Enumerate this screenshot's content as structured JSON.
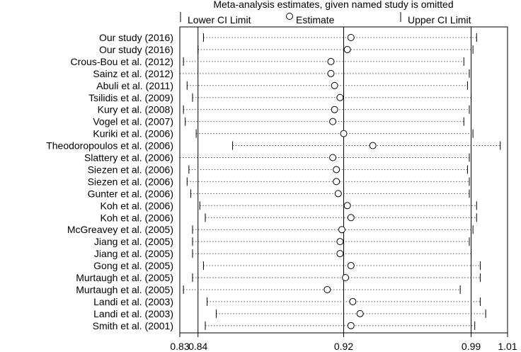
{
  "chart_data": {
    "type": "forest",
    "title": "Meta-analysis estimates, given named study is omitted",
    "legend": {
      "lower": "Lower CI Limit",
      "estimate": "Estimate",
      "upper": "Upper CI Limit"
    },
    "x_ticks": [
      {
        "value": 0.83,
        "label": "0.83"
      },
      {
        "value": 0.84,
        "label": "0.84"
      },
      {
        "value": 0.92,
        "label": "0.92"
      },
      {
        "value": 0.99,
        "label": "0.99"
      },
      {
        "value": 1.01,
        "label": "1.01"
      }
    ],
    "xlim": [
      0.83,
      1.01
    ],
    "reference_lines": [
      0.84,
      0.92,
      0.99
    ],
    "studies": [
      {
        "name": "Our study (2016)",
        "lower": 0.843,
        "estimate": 0.924,
        "upper": 0.993
      },
      {
        "name": "Our study (2016)",
        "lower": 0.84,
        "estimate": 0.922,
        "upper": 0.991
      },
      {
        "name": "Crous-Bou et al. (2012)",
        "lower": 0.832,
        "estimate": 0.913,
        "upper": 0.986
      },
      {
        "name": "Sainz et al. (2012)",
        "lower": 0.83,
        "estimate": 0.913,
        "upper": 0.989
      },
      {
        "name": "Abuli et al. (2011)",
        "lower": 0.834,
        "estimate": 0.915,
        "upper": 0.988
      },
      {
        "name": "Tsilidis et al. (2009)",
        "lower": 0.837,
        "estimate": 0.918,
        "upper": 0.99
      },
      {
        "name": "Kury et al. (2008)",
        "lower": 0.832,
        "estimate": 0.915,
        "upper": 0.989
      },
      {
        "name": "Vogel et al. (2007)",
        "lower": 0.833,
        "estimate": 0.914,
        "upper": 0.986
      },
      {
        "name": "Kuriki et al. (2006)",
        "lower": 0.839,
        "estimate": 0.92,
        "upper": 0.991
      },
      {
        "name": "Theodoropoulos et al. (2006)",
        "lower": 0.859,
        "estimate": 0.936,
        "upper": 1.006
      },
      {
        "name": "Slattery et al. (2006)",
        "lower": 0.83,
        "estimate": 0.914,
        "upper": 0.989
      },
      {
        "name": "Siezen et al. (2006)",
        "lower": 0.835,
        "estimate": 0.916,
        "upper": 0.988
      },
      {
        "name": "Siezen et al. (2006)",
        "lower": 0.834,
        "estimate": 0.916,
        "upper": 0.989
      },
      {
        "name": "Gunter et al. (2006)",
        "lower": 0.836,
        "estimate": 0.917,
        "upper": 0.989
      },
      {
        "name": "Koh et al. (2006)",
        "lower": 0.841,
        "estimate": 0.922,
        "upper": 0.993
      },
      {
        "name": "Koh et al. (2006)",
        "lower": 0.844,
        "estimate": 0.924,
        "upper": 0.993
      },
      {
        "name": "McGreavey et al. (2005)",
        "lower": 0.837,
        "estimate": 0.919,
        "upper": 0.991
      },
      {
        "name": "Jiang et al. (2005)",
        "lower": 0.837,
        "estimate": 0.918,
        "upper": 0.989
      },
      {
        "name": "Jiang et al. (2005)",
        "lower": 0.837,
        "estimate": 0.918,
        "upper": 0.99
      },
      {
        "name": "Gong et al. (2005)",
        "lower": 0.843,
        "estimate": 0.924,
        "upper": 0.995
      },
      {
        "name": "Murtaugh et al. (2005)",
        "lower": 0.837,
        "estimate": 0.921,
        "upper": 0.995
      },
      {
        "name": "Murtaugh et al. (2005)",
        "lower": 0.832,
        "estimate": 0.911,
        "upper": 0.984
      },
      {
        "name": "Landi et al. (2003)",
        "lower": 0.845,
        "estimate": 0.925,
        "upper": 0.995
      },
      {
        "name": "Landi et al. (2003)",
        "lower": 0.85,
        "estimate": 0.929,
        "upper": 0.998
      },
      {
        "name": "Smith et al. (2001)",
        "lower": 0.844,
        "estimate": 0.924,
        "upper": 0.992
      }
    ]
  }
}
